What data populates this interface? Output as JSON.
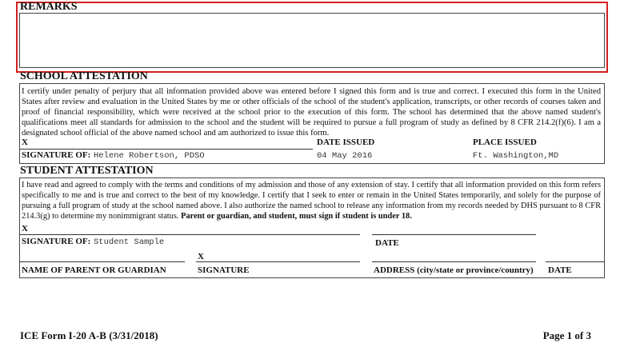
{
  "remarks": {
    "title": "REMARKS",
    "highlight_color": "#d42020"
  },
  "school": {
    "title": "SCHOOL ATTESTATION",
    "text": "I certify under penalty of perjury that all information provided above was entered before I signed this form and is true and correct. I executed this form in the United States after review and evaluation in the United States by me or other officials of the school of the student's application, transcripts, or other records of courses taken and proof of financial responsibility, which were received at the school prior to the execution of this form. The school has determined that the above named student's qualifications meet all standards for admission to the school and the student will be required to pursue a full program of study as defined by 8 CFR 214.2(f)(6). I am a designated school official of the above named school and am authorized to issue this form.",
    "x_mark": "X",
    "signature_label": "SIGNATURE OF:",
    "signature_value": "Helene Robertson, PDSO",
    "date_label": "DATE ISSUED",
    "date_value": "04 May 2016",
    "place_label": "PLACE ISSUED",
    "place_value": "Ft. Washington,MD"
  },
  "student": {
    "title": "STUDENT ATTESTATION",
    "text": "I have read and agreed to comply with the terms and conditions of my admission and those of any extension of stay. I certify that all information provided on this form refers specifically to me and is true and correct to the best of my knowledge. I certify that I seek to enter or remain in the United States temporarily, and solely for the purpose of pursuing a full program of study at the school named above. I also authorize the named school to release any information from my records needed by DHS pursuant to 8 CFR 214.3(g) to determine my nonimmigrant status.",
    "text_bold": "Parent or guardian, and student, must sign if student is under 18.",
    "x_mark": "X",
    "signature_label": "SIGNATURE OF:",
    "signature_value": "Student Sample",
    "date_label": "DATE",
    "x_mark2": "X",
    "parent_label": "NAME OF PARENT OR GUARDIAN",
    "sig_label": "SIGNATURE",
    "address_label": "ADDRESS (city/state or province/country)",
    "date2_label": "DATE"
  },
  "footer": {
    "form_id": "ICE Form I-20 A-B (3/31/2018)",
    "page": "Page 1 of 3"
  }
}
